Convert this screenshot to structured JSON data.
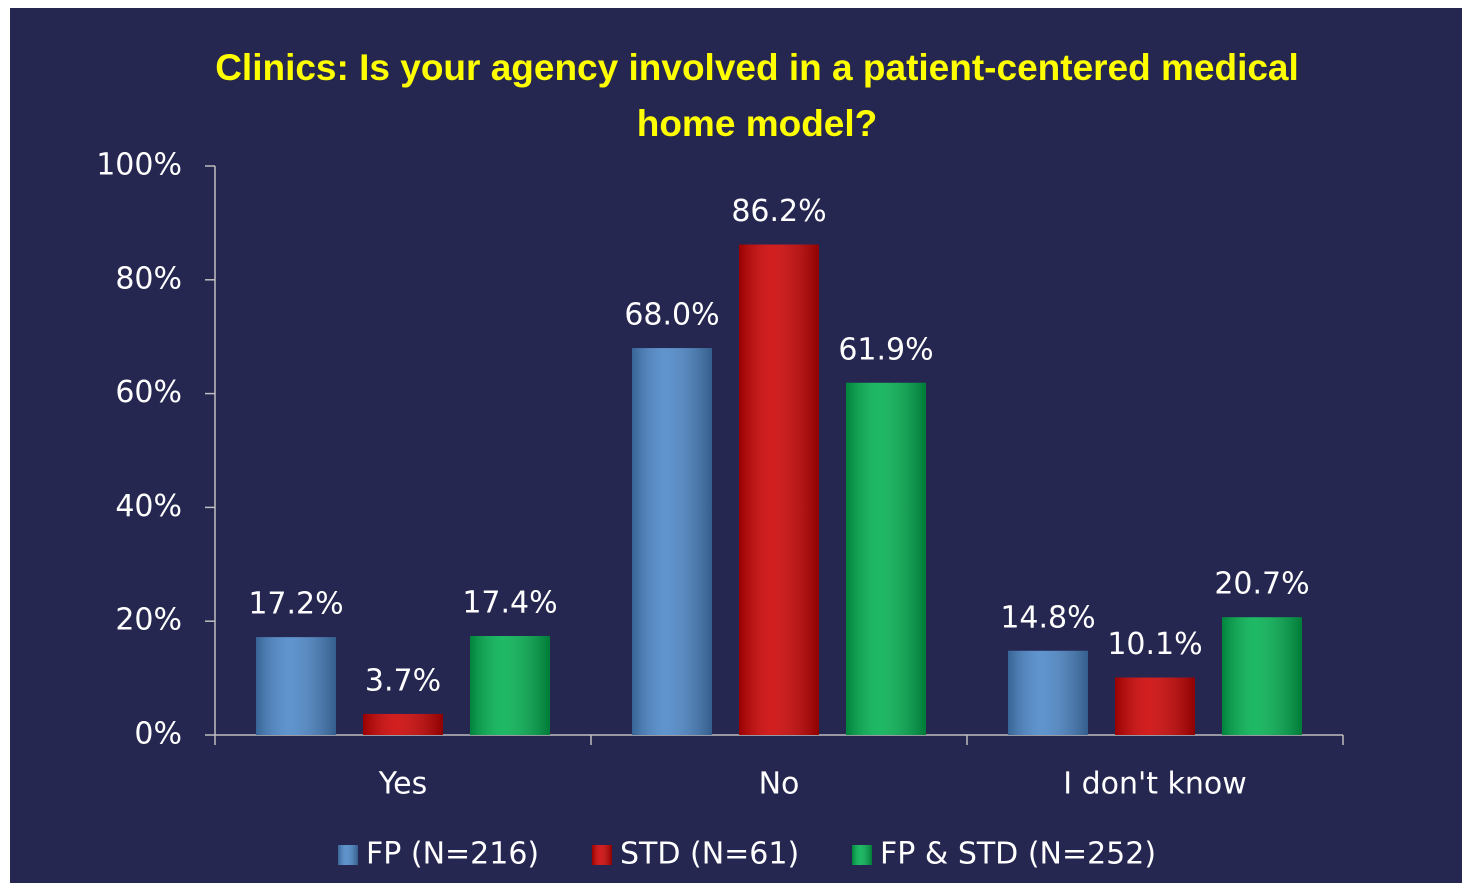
{
  "chart_data": {
    "type": "bar",
    "title": "Clinics: Is your agency involved in a patient-centered medical home model?",
    "categories": [
      "Yes",
      "No",
      "I don't know"
    ],
    "series": [
      {
        "name": "FP (N=216)",
        "color": "#4a86c8",
        "values": [
          17.2,
          68.0,
          14.8
        ],
        "value_labels": [
          "17.2%",
          "68.0%",
          "14.8%"
        ]
      },
      {
        "name": "STD (N=61)",
        "color": "#cc0000",
        "values": [
          3.7,
          86.2,
          10.1
        ],
        "value_labels": [
          "3.7%",
          "86.2%",
          "10.1%"
        ]
      },
      {
        "name": "FP & STD (N=252)",
        "color": "#00b050",
        "values": [
          17.4,
          61.9,
          20.7
        ],
        "value_labels": [
          "17.4%",
          "61.9%",
          "20.7%"
        ]
      }
    ],
    "ylim": [
      0,
      100
    ],
    "yticks": [
      {
        "value": 0,
        "label": "0%"
      },
      {
        "value": 20,
        "label": "20%"
      },
      {
        "value": 40,
        "label": "40%"
      },
      {
        "value": 60,
        "label": "60%"
      },
      {
        "value": 80,
        "label": "80%"
      },
      {
        "value": 100,
        "label": "100%"
      }
    ],
    "legend": "bottom"
  }
}
